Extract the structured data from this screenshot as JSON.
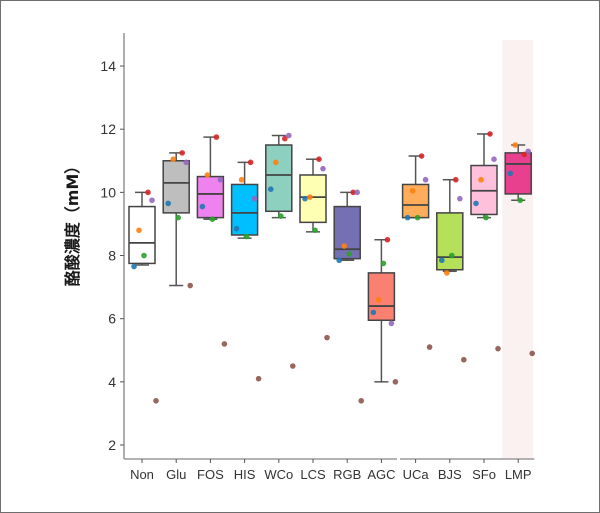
{
  "chart_data": {
    "type": "boxplot",
    "title": "",
    "xlabel": "",
    "ylabel": "酪酸濃度（mM）",
    "ylim": [
      1.5,
      15
    ],
    "yticks": [
      2,
      4,
      6,
      8,
      10,
      12,
      14
    ],
    "grid": false,
    "highlight_category": "LMP",
    "point_colors": [
      "#1f77b4",
      "#ff7f0e",
      "#2ca02c",
      "#d62728",
      "#9467bd",
      "#8c564b"
    ],
    "categories": [
      "Non",
      "Glu",
      "FOS",
      "HIS",
      "WCo",
      "LCS",
      "RGB",
      "AGC",
      "UCa",
      "BJS",
      "SFo",
      "LMP"
    ],
    "gap_after": "AGC",
    "groups": [
      {
        "name": "Non",
        "fill": "#ffffff",
        "whisker_low": 7.7,
        "q1": 7.75,
        "median": 8.4,
        "q3": 9.55,
        "whisker_high": 10.0,
        "points": [
          7.65,
          8.8,
          8.0,
          10.0,
          9.75,
          3.4
        ]
      },
      {
        "name": "Glu",
        "fill": "#bebebe",
        "whisker_low": 7.05,
        "q1": 9.35,
        "median": 10.3,
        "q3": 11.0,
        "whisker_high": 11.25,
        "points": [
          9.65,
          11.05,
          9.2,
          11.25,
          10.95,
          7.05
        ]
      },
      {
        "name": "FOS",
        "fill": "#ee82ee",
        "whisker_low": 9.15,
        "q1": 9.2,
        "median": 9.95,
        "q3": 10.5,
        "whisker_high": 11.75,
        "points": [
          9.55,
          10.55,
          9.15,
          11.75,
          10.4,
          5.2
        ]
      },
      {
        "name": "HIS",
        "fill": "#00bfff",
        "whisker_low": 8.55,
        "q1": 8.65,
        "median": 9.35,
        "q3": 10.25,
        "whisker_high": 10.95,
        "points": [
          8.85,
          10.4,
          8.6,
          10.95,
          9.8,
          4.1
        ]
      },
      {
        "name": "WCo",
        "fill": "#8ed0c0",
        "whisker_low": 9.2,
        "q1": 9.4,
        "median": 10.55,
        "q3": 11.5,
        "whisker_high": 11.8,
        "points": [
          10.1,
          10.95,
          9.25,
          11.7,
          11.8,
          4.5
        ]
      },
      {
        "name": "LCS",
        "fill": "#ffffb4",
        "whisker_low": 8.75,
        "q1": 9.05,
        "median": 9.85,
        "q3": 10.55,
        "whisker_high": 11.05,
        "points": [
          9.8,
          9.85,
          8.8,
          11.05,
          10.75,
          5.4
        ]
      },
      {
        "name": "RGB",
        "fill": "#7570b3",
        "whisker_low": 7.85,
        "q1": 7.9,
        "median": 8.2,
        "q3": 9.55,
        "whisker_high": 10.0,
        "points": [
          7.85,
          8.3,
          8.05,
          10.0,
          10.0,
          3.4
        ]
      },
      {
        "name": "AGC",
        "fill": "#fa8072",
        "whisker_low": 4.0,
        "q1": 5.95,
        "median": 6.4,
        "q3": 7.45,
        "whisker_high": 8.5,
        "points": [
          6.2,
          6.6,
          7.75,
          8.5,
          5.85,
          4.0
        ]
      },
      {
        "name": "UCa",
        "fill": "#ffad5a",
        "whisker_low": 9.2,
        "q1": 9.2,
        "median": 9.6,
        "q3": 10.25,
        "whisker_high": 11.15,
        "points": [
          9.2,
          10.05,
          9.2,
          11.15,
          10.4,
          5.1
        ]
      },
      {
        "name": "BJS",
        "fill": "#b4e05a",
        "whisker_low": 7.5,
        "q1": 7.55,
        "median": 7.95,
        "q3": 9.35,
        "whisker_high": 10.4,
        "points": [
          7.85,
          7.45,
          8.0,
          10.4,
          9.8,
          4.7
        ]
      },
      {
        "name": "SFo",
        "fill": "#ffc0dc",
        "whisker_low": 9.2,
        "q1": 9.3,
        "median": 10.05,
        "q3": 10.85,
        "whisker_high": 11.85,
        "points": [
          9.65,
          10.4,
          9.2,
          11.85,
          11.05,
          5.05
        ]
      },
      {
        "name": "LMP",
        "fill": "#e8408e",
        "whisker_low": 9.75,
        "q1": 9.95,
        "median": 10.9,
        "q3": 11.25,
        "whisker_high": 11.5,
        "points": [
          10.6,
          11.5,
          9.75,
          11.2,
          11.3,
          4.9
        ]
      }
    ]
  }
}
